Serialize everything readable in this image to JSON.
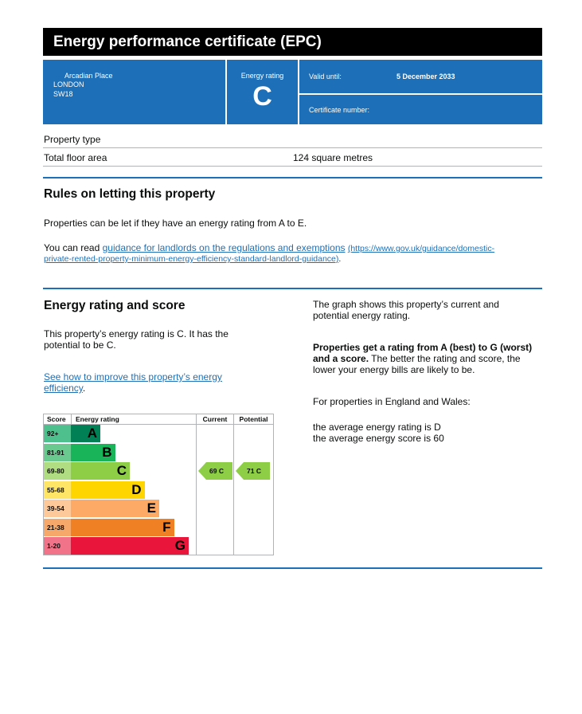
{
  "header": {
    "title": "Energy performance certificate (EPC)"
  },
  "address": {
    "line1": "Arcadian Place",
    "line2": "LONDON",
    "line3": "SW18"
  },
  "rating_box": {
    "label": "Energy rating",
    "value": "C"
  },
  "valid": {
    "label": "Valid until:",
    "value": "5 December 2033"
  },
  "certificate": {
    "label": "Certificate number:",
    "value": ""
  },
  "property": {
    "type_label": "Property type",
    "type_value": "",
    "area_label": "Total floor area",
    "area_value": "124 square metres"
  },
  "letting": {
    "heading": "Rules on letting this property",
    "para1": "Properties can be let if they have an energy rating from A to E.",
    "para2_prefix": "You can read ",
    "link_text": "guidance for landlords on the regulations and exemptions",
    "link_url_line1": "(https://www.gov.uk/guidance/domestic-",
    "link_url_line2": "private-rented-property-minimum-energy-efficiency-standard-landlord-guidance)",
    "para2_suffix": "."
  },
  "energy": {
    "heading": "Energy rating and score",
    "para1_line1": "This property’s energy rating is C. It has the",
    "para1_line2": "potential to be C.",
    "improve_link_line1": "See how to improve this property’s energy",
    "improve_link_line2": "efficiency",
    "improve_suffix": "."
  },
  "side": {
    "graph_line1": "The graph shows this property’s current and",
    "graph_line2": "potential energy rating.",
    "bold_line1": "Properties get a rating from A (best) to G (worst)",
    "bold_line2": "and a score.",
    "rest_line2": " The better the rating and score, the",
    "rest_line3": "lower your energy bills are likely to be.",
    "region": "For properties in England and Wales:",
    "avg_rating": "the average energy rating is D",
    "avg_score": "the average energy score is 60"
  },
  "chart_data": {
    "type": "bar",
    "headers": {
      "score": "Score",
      "rating": "Energy rating",
      "current": "Current",
      "potential": "Potential"
    },
    "bands": [
      {
        "score": "92+",
        "letter": "A",
        "color": "#008054",
        "text": "#000000",
        "band_color_score": "#4ec08d"
      },
      {
        "score": "81-91",
        "letter": "B",
        "color": "#19b459",
        "text": "#000000",
        "band_color_score": "#69c98f"
      },
      {
        "score": "69-80",
        "letter": "C",
        "color": "#8dce46",
        "text": "#000000",
        "band_color_score": "#b1dd82"
      },
      {
        "score": "55-68",
        "letter": "D",
        "color": "#ffd500",
        "text": "#000000",
        "band_color_score": "#ffe566"
      },
      {
        "score": "39-54",
        "letter": "E",
        "color": "#fcaa65",
        "text": "#000000",
        "band_color_score": "#fdc99b"
      },
      {
        "score": "21-38",
        "letter": "F",
        "color": "#ef8023",
        "text": "#000000",
        "band_color_score": "#f5a86a"
      },
      {
        "score": "1-20",
        "letter": "G",
        "color": "#e9153b",
        "text": "#000000",
        "band_color_score": "#f07389"
      }
    ],
    "current": {
      "score": 69,
      "letter": "C",
      "label": "69  C",
      "band": 2,
      "color": "#8dce46"
    },
    "potential": {
      "score": 71,
      "letter": "C",
      "label": "71  C",
      "band": 2,
      "color": "#8dce46"
    }
  }
}
